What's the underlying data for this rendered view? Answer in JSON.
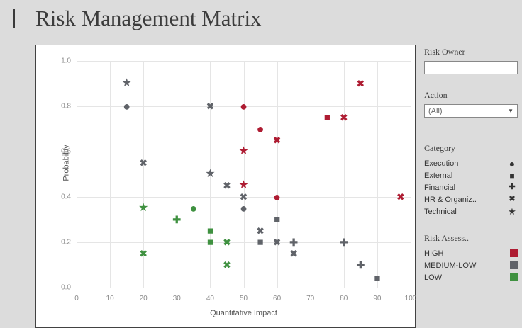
{
  "title": "Risk Management Matrix",
  "chart_data": {
    "type": "scatter",
    "title": "Risk Management Matrix",
    "xlabel": "Quantitative Impact",
    "ylabel": "Probability",
    "xlim": [
      0,
      100
    ],
    "ylim": [
      0.0,
      1.0
    ],
    "x_ticks": [
      "0",
      "10",
      "20",
      "30",
      "40",
      "50",
      "60",
      "70",
      "80",
      "90",
      "100"
    ],
    "y_ticks": [
      "0.0",
      "0.2",
      "0.4",
      "0.6",
      "0.8",
      "1.0"
    ],
    "grid": true,
    "colors": {
      "HIGH": "#ae1c32",
      "MEDIUM-LOW": "#606369",
      "LOW": "#3f9140"
    },
    "shapes": {
      "Execution": "circle",
      "External": "square",
      "Financial": "plus",
      "HR & Organiz..": "x",
      "Technical": "star"
    },
    "glyphs": {
      "circle": "●",
      "square": "■",
      "plus": "✚",
      "x": "✖",
      "star": "★"
    },
    "points": [
      {
        "x": 15,
        "y": 0.9,
        "category": "Technical",
        "risk": "MEDIUM-LOW"
      },
      {
        "x": 15,
        "y": 0.8,
        "category": "Execution",
        "risk": "MEDIUM-LOW"
      },
      {
        "x": 20,
        "y": 0.55,
        "category": "HR & Organiz..",
        "risk": "MEDIUM-LOW"
      },
      {
        "x": 20,
        "y": 0.35,
        "category": "Technical",
        "risk": "LOW"
      },
      {
        "x": 20,
        "y": 0.15,
        "category": "HR & Organiz..",
        "risk": "LOW"
      },
      {
        "x": 30,
        "y": 0.3,
        "category": "Financial",
        "risk": "LOW"
      },
      {
        "x": 35,
        "y": 0.35,
        "category": "Execution",
        "risk": "LOW"
      },
      {
        "x": 40,
        "y": 0.8,
        "category": "HR & Organiz..",
        "risk": "MEDIUM-LOW"
      },
      {
        "x": 40,
        "y": 0.5,
        "category": "Technical",
        "risk": "MEDIUM-LOW"
      },
      {
        "x": 40,
        "y": 0.25,
        "category": "External",
        "risk": "LOW"
      },
      {
        "x": 40,
        "y": 0.2,
        "category": "External",
        "risk": "LOW"
      },
      {
        "x": 45,
        "y": 0.45,
        "category": "HR & Organiz..",
        "risk": "MEDIUM-LOW"
      },
      {
        "x": 45,
        "y": 0.2,
        "category": "HR & Organiz..",
        "risk": "LOW"
      },
      {
        "x": 45,
        "y": 0.1,
        "category": "HR & Organiz..",
        "risk": "LOW"
      },
      {
        "x": 50,
        "y": 0.8,
        "category": "Execution",
        "risk": "HIGH"
      },
      {
        "x": 50,
        "y": 0.6,
        "category": "Technical",
        "risk": "HIGH"
      },
      {
        "x": 50,
        "y": 0.45,
        "category": "Technical",
        "risk": "HIGH"
      },
      {
        "x": 50,
        "y": 0.4,
        "category": "HR & Organiz..",
        "risk": "MEDIUM-LOW"
      },
      {
        "x": 50,
        "y": 0.35,
        "category": "Execution",
        "risk": "MEDIUM-LOW"
      },
      {
        "x": 55,
        "y": 0.7,
        "category": "Execution",
        "risk": "HIGH"
      },
      {
        "x": 55,
        "y": 0.25,
        "category": "HR & Organiz..",
        "risk": "MEDIUM-LOW"
      },
      {
        "x": 55,
        "y": 0.2,
        "category": "External",
        "risk": "MEDIUM-LOW"
      },
      {
        "x": 60,
        "y": 0.65,
        "category": "HR & Organiz..",
        "risk": "HIGH"
      },
      {
        "x": 60,
        "y": 0.4,
        "category": "Execution",
        "risk": "HIGH"
      },
      {
        "x": 60,
        "y": 0.3,
        "category": "External",
        "risk": "MEDIUM-LOW"
      },
      {
        "x": 60,
        "y": 0.2,
        "category": "HR & Organiz..",
        "risk": "MEDIUM-LOW"
      },
      {
        "x": 65,
        "y": 0.2,
        "category": "Financial",
        "risk": "MEDIUM-LOW"
      },
      {
        "x": 65,
        "y": 0.15,
        "category": "HR & Organiz..",
        "risk": "MEDIUM-LOW"
      },
      {
        "x": 75,
        "y": 0.75,
        "category": "External",
        "risk": "HIGH"
      },
      {
        "x": 80,
        "y": 0.75,
        "category": "HR & Organiz..",
        "risk": "HIGH"
      },
      {
        "x": 80,
        "y": 0.2,
        "category": "Financial",
        "risk": "MEDIUM-LOW"
      },
      {
        "x": 85,
        "y": 0.9,
        "category": "HR & Organiz..",
        "risk": "HIGH"
      },
      {
        "x": 85,
        "y": 0.1,
        "category": "Financial",
        "risk": "MEDIUM-LOW"
      },
      {
        "x": 90,
        "y": 0.04,
        "category": "External",
        "risk": "MEDIUM-LOW"
      },
      {
        "x": 97,
        "y": 0.4,
        "category": "HR & Organiz..",
        "risk": "HIGH"
      }
    ]
  },
  "filters": {
    "risk_owner_label": "Risk Owner",
    "risk_owner_value": "",
    "action_label": "Action",
    "action_value": "(All)",
    "chevron_icon": "▼"
  },
  "legends": {
    "category": {
      "title": "Category",
      "items": [
        {
          "label": "Execution",
          "shape": "circle"
        },
        {
          "label": "External",
          "shape": "square"
        },
        {
          "label": "Financial",
          "shape": "plus"
        },
        {
          "label": "HR & Organiz..",
          "shape": "x"
        },
        {
          "label": "Technical",
          "shape": "star"
        }
      ]
    },
    "risk": {
      "title": "Risk Assess..",
      "items": [
        {
          "label": "HIGH",
          "color": "#ae1c32"
        },
        {
          "label": "MEDIUM-LOW",
          "color": "#606369"
        },
        {
          "label": "LOW",
          "color": "#3f9140"
        }
      ]
    }
  }
}
